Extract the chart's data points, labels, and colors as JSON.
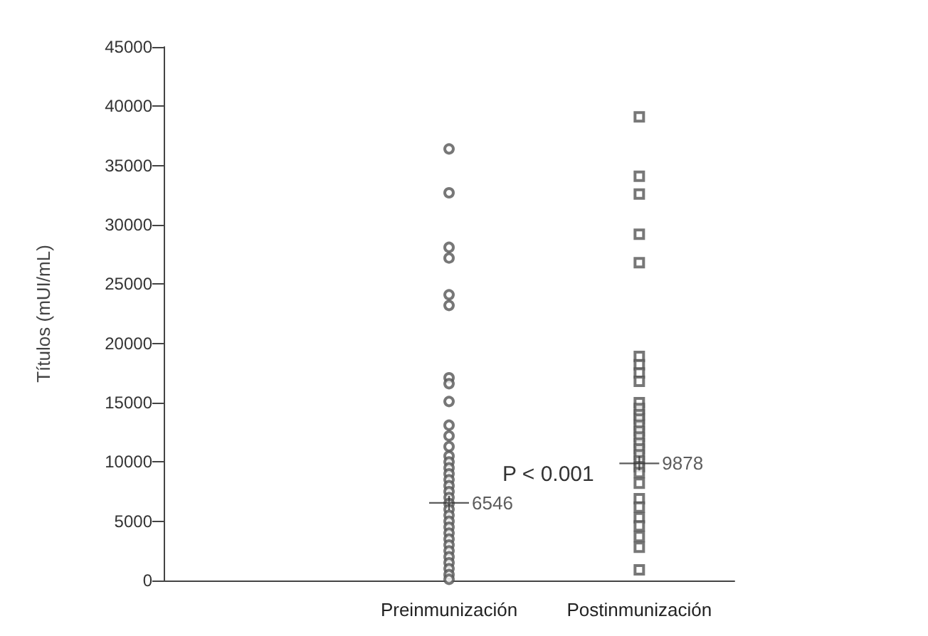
{
  "chart_data": {
    "type": "scatter",
    "ylabel": "Títulos (mUI/mL)",
    "categories": [
      null,
      "Preinmunización",
      "Postinmunización"
    ],
    "ylim": [
      0,
      45000
    ],
    "yticks": [
      0,
      5000,
      10000,
      15000,
      20000,
      25000,
      30000,
      35000,
      40000,
      45000
    ],
    "grid": false,
    "series": [
      {
        "color": "#555555",
        "marker": "circle",
        "x": [
          "Preinmunización",
          "Preinmunización",
          "Preinmunización",
          "Preinmunización",
          "Preinmunización",
          "Preinmunización",
          "Preinmunización",
          "Preinmunización",
          "Preinmunización",
          "Preinmunización",
          "Preinmunización",
          "Preinmunización",
          "Preinmunización",
          "Preinmunización",
          "Preinmunización",
          "Preinmunización",
          "Preinmunización",
          "Preinmunización",
          "Preinmunización",
          "Preinmunización",
          "Preinmunización",
          "Preinmunización",
          "Preinmunización",
          "Preinmunización",
          "Preinmunización",
          "Preinmunización",
          "Preinmunización",
          "Preinmunización",
          "Preinmunización",
          "Preinmunización",
          "Preinmunización",
          "Preinmunización",
          "Preinmunización",
          "Preinmunización"
        ],
        "values": [
          36400,
          32700,
          28100,
          27200,
          24100,
          23200,
          17100,
          16600,
          15100,
          13100,
          12200,
          11300,
          10500,
          10000,
          9500,
          9000,
          8500,
          8000,
          7500,
          7000,
          6500,
          6000,
          5500,
          5000,
          4500,
          4000,
          3500,
          3000,
          2500,
          2000,
          1500,
          1000,
          500,
          100
        ]
      },
      {
        "color": "#333333",
        "marker": "cross",
        "data_labels": true,
        "x": [
          "Preinmunización",
          "Postinmunización"
        ],
        "values": [
          6546,
          9878
        ]
      },
      {
        "color": "#555555",
        "marker": "square",
        "x": [
          "Postinmunización",
          "Postinmunización",
          "Postinmunización",
          "Postinmunización",
          "Postinmunización",
          "Postinmunización",
          "Postinmunización",
          "Postinmunización",
          "Postinmunización",
          "Postinmunización",
          "Postinmunización",
          "Postinmunización",
          "Postinmunización",
          "Postinmunización",
          "Postinmunización",
          "Postinmunización",
          "Postinmunización",
          "Postinmunización",
          "Postinmunización",
          "Postinmunización",
          "Postinmunización",
          "Postinmunización",
          "Postinmunización",
          "Postinmunización",
          "Postinmunización",
          "Postinmunización",
          "Postinmunización",
          "Postinmunización",
          "Postinmunización",
          "Postinmunización"
        ],
        "values": [
          39100,
          34100,
          32600,
          29200,
          26800,
          18900,
          18200,
          17500,
          16800,
          15000,
          14500,
          14000,
          13600,
          13100,
          12600,
          12100,
          11600,
          11100,
          10600,
          10100,
          9600,
          9100,
          8200,
          6900,
          6200,
          5300,
          4600,
          3700,
          2800,
          900
        ]
      }
    ],
    "annotations": [
      "P < 0.001"
    ]
  }
}
